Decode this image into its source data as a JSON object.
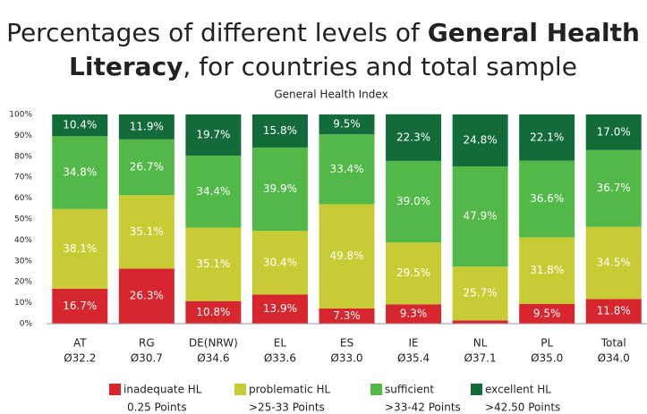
{
  "chart_data": {
    "type": "stacked_bar",
    "title": [
      "Percentages of different levels of",
      "General Health",
      "Literacy",
      ", for countries and total sample"
    ],
    "subtitle": "General Health Index",
    "categories": [
      "AT",
      "RG",
      "DE(NRW)",
      "EL",
      "ES",
      "IE",
      "NL",
      "PL",
      "Total"
    ],
    "category_means": [
      "Ø32.2",
      "Ø30.7",
      "Ø34.6",
      "Ø33.6",
      "Ø33.0",
      "Ø35.4",
      "Ø37.1",
      "Ø35.0",
      "Ø34.0"
    ],
    "series": [
      {
        "name": "inadequate HL",
        "description": "0.25 Points",
        "color": "#d7262e",
        "values": [
          16.7,
          26.3,
          10.8,
          13.9,
          7.3,
          9.3,
          1.6,
          9.5,
          11.8
        ],
        "value_labels": [
          "16.7%",
          "26.3%",
          "10.8%",
          "13.9%",
          "7.3%",
          "9.3%",
          "1.6%",
          "9.5%",
          "11.8%"
        ]
      },
      {
        "name": "problematic HL",
        "description": ">25-33 Points",
        "color": "#c8cc34",
        "values": [
          38.1,
          35.1,
          35.1,
          30.4,
          49.8,
          29.5,
          25.7,
          31.8,
          34.5
        ],
        "value_labels": [
          "38.1%",
          "35.1%",
          "35.1%",
          "30.4%",
          "49.8%",
          "29.5%",
          "25.7%",
          "31.8%",
          "34.5%"
        ]
      },
      {
        "name": "sufficient",
        "description": ">33-42 Points",
        "color": "#52b848",
        "values": [
          34.8,
          26.7,
          34.4,
          39.9,
          33.4,
          39.0,
          47.9,
          36.6,
          36.7
        ],
        "value_labels": [
          "34.8%",
          "26.7%",
          "34.4%",
          "39.9%",
          "33.4%",
          "39.0%",
          "47.9%",
          "36.6%",
          "36.7%"
        ]
      },
      {
        "name": "excellent HL",
        "description": ">42.50 Points",
        "color": "#136b3a",
        "values": [
          10.4,
          11.9,
          19.7,
          15.8,
          9.5,
          22.3,
          24.8,
          22.1,
          17.0
        ],
        "value_labels": [
          "10.4%",
          "11.9%",
          "19.7%",
          "15.8%",
          "9.5%",
          "22.3%",
          "24.8%",
          "22.1%",
          "17.0%"
        ]
      }
    ],
    "ylim": [
      0,
      100
    ],
    "yticks": [
      {
        "value": 0,
        "label": "0%"
      },
      {
        "value": 10,
        "label": "10%"
      },
      {
        "value": 20,
        "label": "20%"
      },
      {
        "value": 30,
        "label": "30%"
      },
      {
        "value": 40,
        "label": "40%"
      },
      {
        "value": 50,
        "label": "50%"
      },
      {
        "value": 60,
        "label": "60%"
      },
      {
        "value": 70,
        "label": "70%"
      },
      {
        "value": 80,
        "label": "80%"
      },
      {
        "value": 90,
        "label": "90%"
      },
      {
        "value": 100,
        "label": "100%"
      }
    ],
    "grid": false
  }
}
